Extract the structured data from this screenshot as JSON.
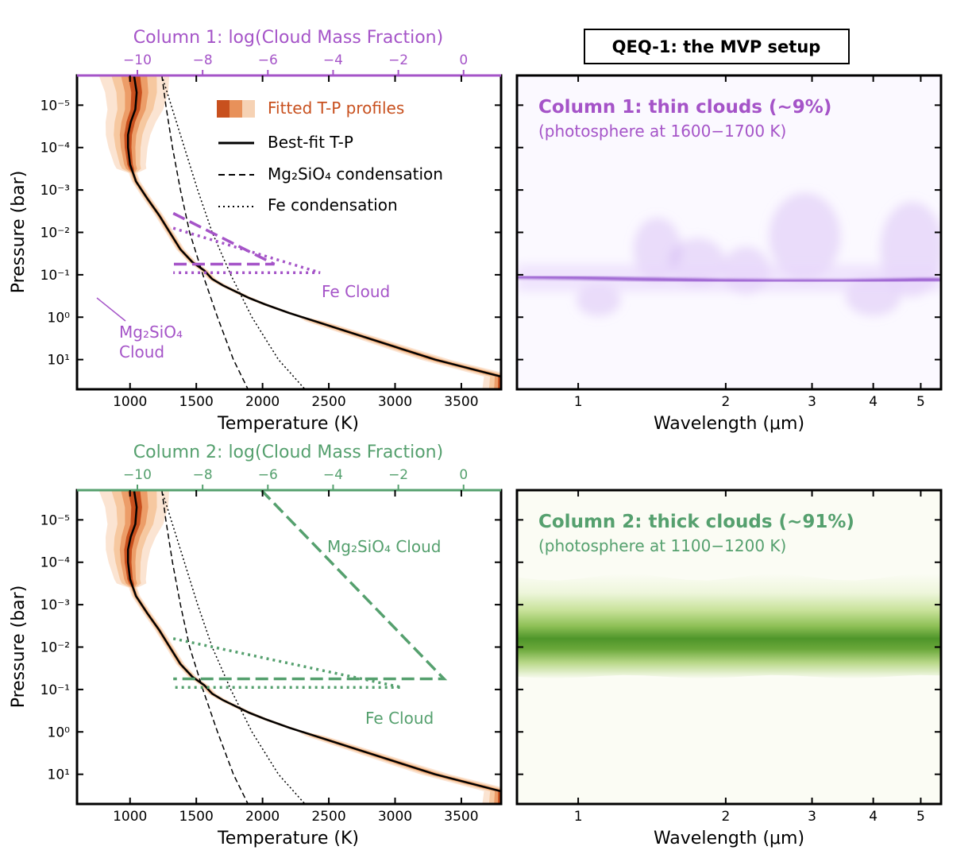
{
  "title": "QEQ-1: the MVP setup",
  "colors": {
    "purple": "#a554c8",
    "green": "#55a06e",
    "orange_dark": "#c8501e",
    "orange_mid": "#e8915a",
    "orange_light": "#f6d2b4",
    "purple_heat": "#7a2fc0",
    "green_heat": "#3f8a1a"
  },
  "legend": {
    "fitted": "Fitted T-P profiles",
    "bestfit": "Best-fit T-P",
    "mg2sio4": "Mg₂SiO₄ condensation",
    "fe": "Fe condensation"
  },
  "chart_data": [
    {
      "id": "tp1",
      "type": "line",
      "top_axis_title": "Column 1: log(Cloud Mass Fraction)",
      "top_ticks": [
        -10,
        -8,
        -6,
        -4,
        -2,
        0
      ],
      "top_tick_labels": [
        "−10",
        "−8",
        "−6",
        "−4",
        "−2",
        "0"
      ],
      "xlabel": "Temperature (K)",
      "ylabel": "Pressure (bar)",
      "xlim": [
        600,
        3800
      ],
      "ylim_log10_bar": [
        -5.7,
        1.7
      ],
      "y_scale": "log, inverted",
      "xticks": [
        1000,
        1500,
        2000,
        2500,
        3000,
        3500
      ],
      "yticks": [
        -5,
        -4,
        -3,
        -2,
        -1,
        0,
        1
      ],
      "ytick_labels": [
        "10⁻⁵",
        "10⁻⁴",
        "10⁻³",
        "10⁻²",
        "10⁻¹",
        "10⁰",
        "10¹"
      ],
      "bestfit_tp": {
        "log10P": [
          -5.7,
          -5.3,
          -4.9,
          -4.6,
          -4.3,
          -4.0,
          -3.6,
          -3.2,
          -2.8,
          -2.4,
          -2.0,
          -1.6,
          -1.3,
          -1.1,
          -0.9,
          -0.75,
          -0.6,
          -0.45,
          -0.3,
          -0.1,
          0.1,
          0.4,
          0.7,
          1.0,
          1.2,
          1.4
        ],
        "T": [
          1030,
          1050,
          1040,
          1005,
          985,
          985,
          1000,
          1045,
          1130,
          1220,
          1300,
          1380,
          1470,
          1560,
          1620,
          1700,
          1800,
          1900,
          2020,
          2200,
          2400,
          2700,
          3000,
          3300,
          3550,
          3800
        ]
      },
      "mg2sio4_condensation": {
        "log10P": [
          -5.7,
          -5.0,
          -4.0,
          -3.0,
          -2.0,
          -1.0,
          0.0,
          1.0,
          1.7
        ],
        "T": [
          1240,
          1270,
          1320,
          1380,
          1450,
          1550,
          1660,
          1780,
          1890
        ]
      },
      "fe_condensation": {
        "log10P": [
          -5.7,
          -5.0,
          -4.0,
          -3.0,
          -2.0,
          -1.0,
          0.0,
          1.0,
          1.7
        ],
        "T": [
          1240,
          1310,
          1410,
          1510,
          1620,
          1760,
          1920,
          2120,
          2320
        ]
      },
      "clouds": [
        {
          "name": "Mg₂SiO₄ Cloud",
          "style": "dashed",
          "points": [
            [
              -8.9,
              -2.45
            ],
            [
              -5.8,
              -1.25
            ],
            [
              -5.8,
              -1.25
            ],
            [
              -8.9,
              -1.25
            ]
          ]
        },
        {
          "name": "Fe Cloud",
          "style": "dotted",
          "points": [
            [
              -8.9,
              -2.1
            ],
            [
              -4.4,
              -1.05
            ],
            [
              -4.4,
              -1.05
            ],
            [
              -8.9,
              -1.05
            ]
          ]
        }
      ],
      "cloud_labels": [
        {
          "text": "Fe Cloud",
          "T": 2430,
          "log10P": -1.1
        },
        {
          "text_lines": [
            "Mg₂SiO₄",
            "Cloud"
          ],
          "T": 950,
          "log10P": 0.4
        }
      ]
    },
    {
      "id": "spec1",
      "type": "heatmap",
      "title": "Column 1: thin clouds (∼9%)",
      "subtitle": "(photosphere at 1600−1700 K)",
      "xlabel": "Wavelength (μm)",
      "x_scale": "log",
      "xlim": [
        0.75,
        5.5
      ],
      "xticks": [
        1,
        2,
        3,
        4,
        5
      ],
      "ylim_log10_bar": [
        -5.7,
        1.7
      ],
      "ridge": {
        "wavelength": [
          0.75,
          1.0,
          1.3,
          1.6,
          2.0,
          2.5,
          3.0,
          3.5,
          4.0,
          5.0,
          5.5
        ],
        "log10P": [
          -0.95,
          -0.93,
          -0.9,
          -0.88,
          -0.86,
          -0.85,
          -0.85,
          -0.85,
          -0.86,
          -0.88,
          -0.88
        ]
      }
    },
    {
      "id": "tp2",
      "type": "line",
      "top_axis_title": "Column 2: log(Cloud Mass Fraction)",
      "top_ticks": [
        -10,
        -8,
        -6,
        -4,
        -2,
        0
      ],
      "top_tick_labels": [
        "−10",
        "−8",
        "−6",
        "−4",
        "−2",
        "0"
      ],
      "xlabel": "Temperature (K)",
      "ylabel": "Pressure (bar)",
      "xlim": [
        600,
        3800
      ],
      "ylim_log10_bar": [
        -5.7,
        1.7
      ],
      "xticks": [
        1000,
        1500,
        2000,
        2500,
        3000,
        3500
      ],
      "yticks": [
        -5,
        -4,
        -3,
        -2,
        -1,
        0,
        1
      ],
      "ytick_labels": [
        "10⁻⁵",
        "10⁻⁴",
        "10⁻³",
        "10⁻²",
        "10⁻¹",
        "10⁰",
        "10¹"
      ],
      "clouds": [
        {
          "name": "Mg₂SiO₄ Cloud",
          "style": "dashed",
          "points": [
            [
              -6.2,
              -5.7
            ],
            [
              -0.6,
              -1.25
            ],
            [
              -0.6,
              -1.25
            ],
            [
              -8.9,
              -1.25
            ]
          ]
        },
        {
          "name": "Fe Cloud",
          "style": "dotted",
          "points": [
            [
              -8.9,
              -2.2
            ],
            [
              -1.9,
              -1.05
            ],
            [
              -1.9,
              -1.05
            ],
            [
              -8.9,
              -1.05
            ]
          ]
        }
      ],
      "cloud_labels": [
        {
          "text": "Mg₂SiO₄ Cloud",
          "T": 2530,
          "log10P": -4.25
        },
        {
          "text": "Fe Cloud",
          "T": 2770,
          "log10P": -0.3
        }
      ]
    },
    {
      "id": "spec2",
      "type": "heatmap",
      "title": "Column 2: thick clouds (∼91%)",
      "subtitle": "(photosphere at 1100−1200 K)",
      "xlabel": "Wavelength (μm)",
      "x_scale": "log",
      "xlim": [
        0.75,
        5.5
      ],
      "xticks": [
        1,
        2,
        3,
        4,
        5
      ],
      "ylim_log10_bar": [
        -5.7,
        1.7
      ],
      "band_center_log10P": -2.3
    }
  ]
}
